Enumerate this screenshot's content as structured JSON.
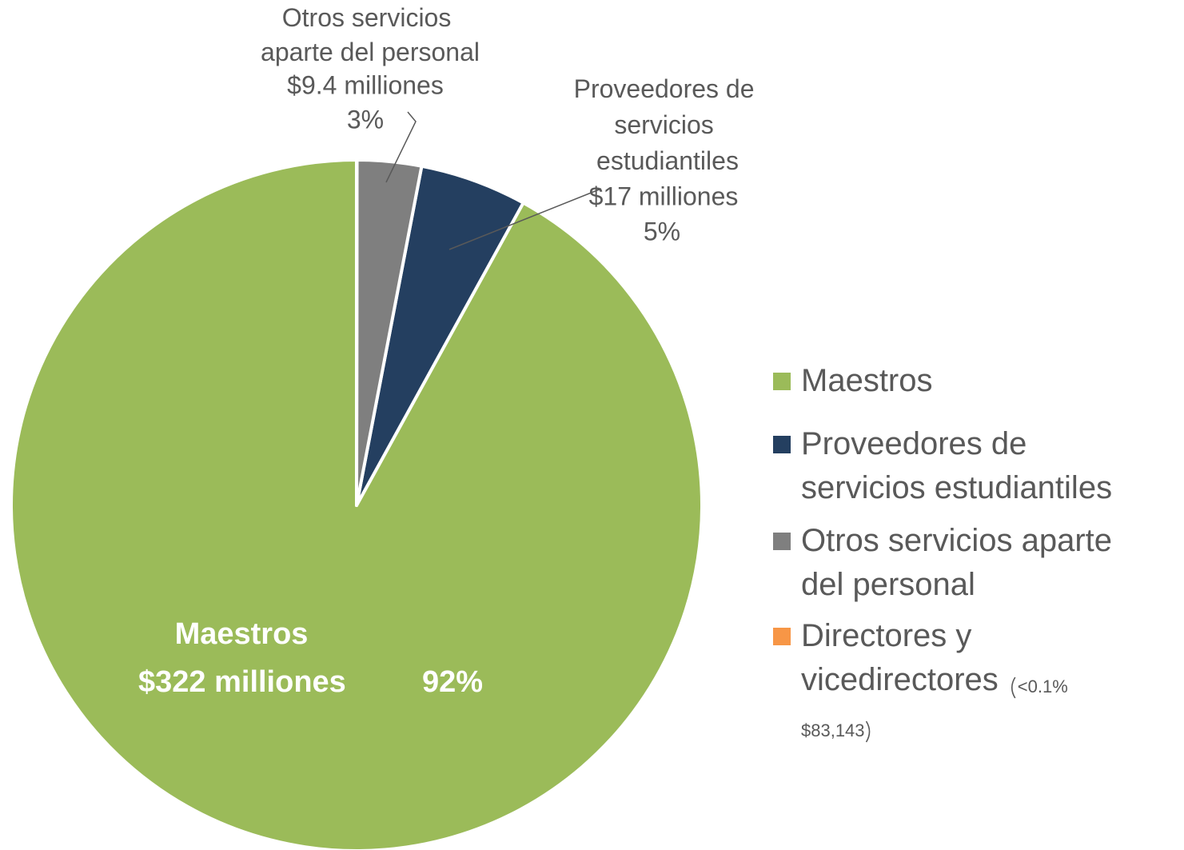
{
  "chart_data": {
    "type": "pie",
    "categories": [
      "Maestros",
      "Proveedores de servicios estudiantiles",
      "Otros servicios aparte del personal",
      "Directores y vicedirectores"
    ],
    "values": [
      92,
      5,
      3,
      0.02
    ],
    "value_labels": [
      "92%",
      "5%",
      "3%",
      "<0.1%"
    ],
    "amount_labels": [
      "$322 milliones",
      "$17 milliones",
      "$9.4 milliones",
      "$83,143"
    ],
    "colors": [
      "#9bbb59",
      "#243f60",
      "#7f7f7f",
      "#f79646"
    ],
    "legend": "right"
  }
}
